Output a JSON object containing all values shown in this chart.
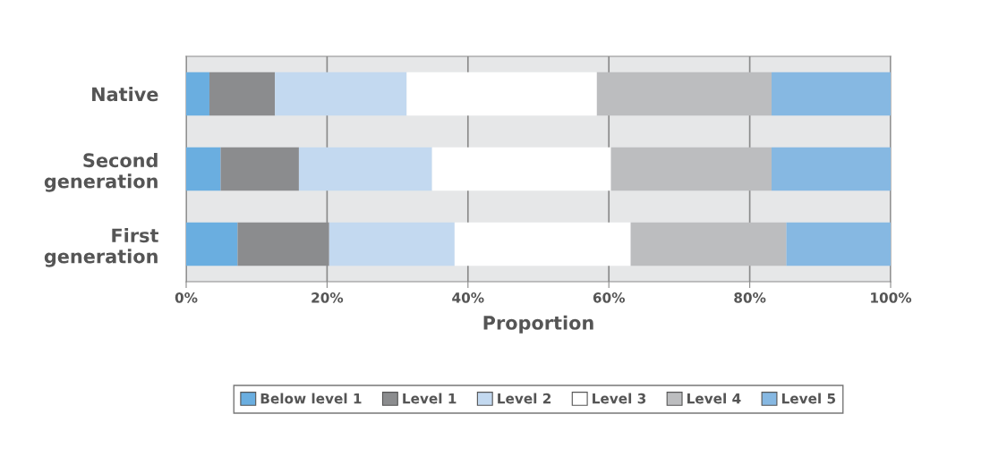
{
  "chart_data": {
    "type": "bar",
    "orientation": "horizontal",
    "stacked": true,
    "xlabel": "Proportion",
    "categories": [
      "Native",
      "Second\ngeneration",
      "First\ngeneration"
    ],
    "series": [
      {
        "name": "Below level 1",
        "color": "#6aaee0",
        "values": [
          3.3,
          4.9,
          7.3
        ]
      },
      {
        "name": "Level 1",
        "color": "#8b8c8e",
        "values": [
          9.3,
          11.1,
          13.0
        ]
      },
      {
        "name": "Level 2",
        "color": "#c3d9f0",
        "values": [
          18.7,
          18.9,
          17.8
        ]
      },
      {
        "name": "Level 3",
        "color": "#ffffff",
        "values": [
          27.0,
          25.4,
          25.0
        ]
      },
      {
        "name": "Level 4",
        "color": "#bcbdbf",
        "values": [
          24.8,
          22.8,
          22.1
        ]
      },
      {
        "name": "Level 5",
        "color": "#86b8e2",
        "values": [
          16.9,
          16.9,
          14.8
        ]
      }
    ],
    "xlim": [
      0,
      100
    ],
    "xticks": [
      {
        "value": 0,
        "label": "0%"
      },
      {
        "value": 20,
        "label": "20%"
      },
      {
        "value": 40,
        "label": "40%"
      },
      {
        "value": 60,
        "label": "60%"
      },
      {
        "value": 80,
        "label": "80%"
      },
      {
        "value": 100,
        "label": "100%"
      }
    ],
    "grid": "x",
    "legend": "bottom"
  }
}
